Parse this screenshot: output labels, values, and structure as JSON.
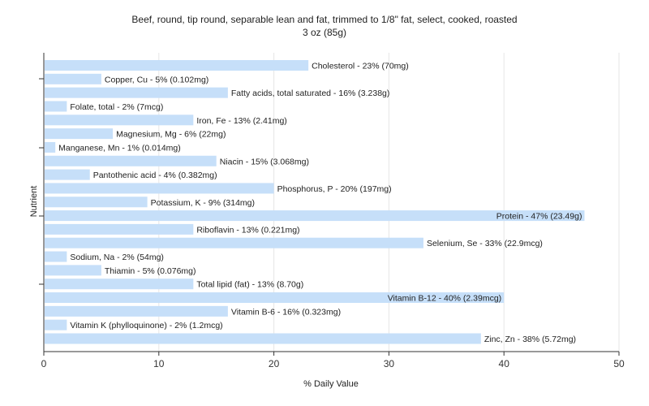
{
  "chart_data": {
    "type": "bar",
    "orientation": "horizontal",
    "title": "Beef, round, tip round, separable lean and fat, trimmed to 1/8\" fat, select, cooked, roasted",
    "subtitle": "3 oz (85g)",
    "xlabel": "% Daily Value",
    "ylabel": "Nutrient",
    "xlim": [
      0,
      50
    ],
    "xticks": [
      0,
      10,
      20,
      30,
      40,
      50
    ],
    "grid": true,
    "bar_color": "#c6dff9",
    "categories": [
      "Cholesterol",
      "Copper, Cu",
      "Fatty acids, total saturated",
      "Folate, total",
      "Iron, Fe",
      "Magnesium, Mg",
      "Manganese, Mn",
      "Niacin",
      "Pantothenic acid",
      "Phosphorus, P",
      "Potassium, K",
      "Protein",
      "Riboflavin",
      "Selenium, Se",
      "Sodium, Na",
      "Thiamin",
      "Total lipid (fat)",
      "Vitamin B-12",
      "Vitamin B-6",
      "Vitamin K (phylloquinone)",
      "Zinc, Zn"
    ],
    "values": [
      23,
      5,
      16,
      2,
      13,
      6,
      1,
      15,
      4,
      20,
      9,
      47,
      13,
      33,
      2,
      5,
      13,
      40,
      16,
      2,
      38
    ],
    "labels": [
      "Cholesterol - 23% (70mg)",
      "Copper, Cu - 5% (0.102mg)",
      "Fatty acids, total saturated - 16% (3.238g)",
      "Folate, total - 2% (7mcg)",
      "Iron, Fe - 13% (2.41mg)",
      "Magnesium, Mg - 6% (22mg)",
      "Manganese, Mn - 1% (0.014mg)",
      "Niacin - 15% (3.068mg)",
      "Pantothenic acid - 4% (0.382mg)",
      "Phosphorus, P - 20% (197mg)",
      "Potassium, K - 9% (314mg)",
      "Protein - 47% (23.49g)",
      "Riboflavin - 13% (0.221mg)",
      "Selenium, Se - 33% (22.9mcg)",
      "Sodium, Na - 2% (54mg)",
      "Thiamin - 5% (0.076mg)",
      "Total lipid (fat) - 13% (8.70g)",
      "Vitamin B-12 - 40% (2.39mcg)",
      "Vitamin B-6 - 16% (0.323mg)",
      "Vitamin K (phylloquinone) - 2% (1.2mcg)",
      "Zinc, Zn - 38% (5.72mg)"
    ]
  }
}
